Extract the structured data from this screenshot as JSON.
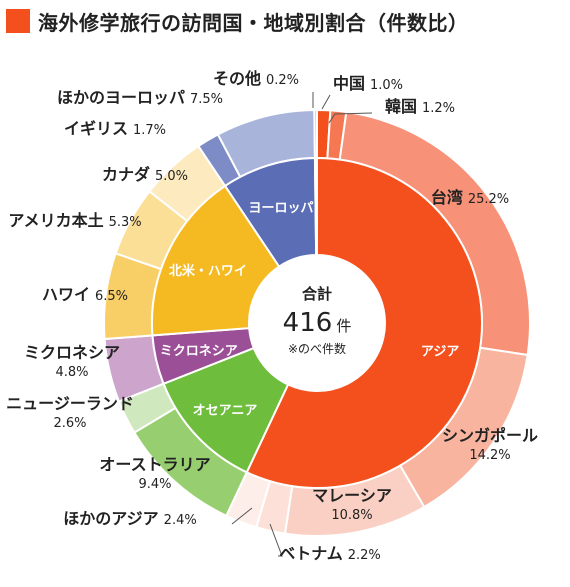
{
  "chart_data": {
    "type": "pie",
    "title": "海外修学旅行の訪問国・地域別割合（件数比）",
    "center": {
      "label": "合計",
      "total": "416",
      "unit": "件",
      "note": "※のべ件数"
    },
    "regions": [
      {
        "name": "アジア",
        "color": "#f4501e",
        "countries": [
          {
            "name": "中国",
            "value": 1.0,
            "label": "1.0%",
            "color": "#f4501e"
          },
          {
            "name": "韓国",
            "value": 1.2,
            "label": "1.2%",
            "color": "#f67852"
          },
          {
            "name": "台湾",
            "value": 25.2,
            "label": "25.2%",
            "color": "#f79177"
          },
          {
            "name": "シンガポール",
            "value": 14.2,
            "label": "14.2%",
            "color": "#f9b4a0"
          },
          {
            "name": "マレーシア",
            "value": 10.8,
            "label": "10.8%",
            "color": "#fbd0c4"
          },
          {
            "name": "ベトナム",
            "value": 2.2,
            "label": "2.2%",
            "color": "#fde1d8"
          },
          {
            "name": "ほかのアジア",
            "value": 2.4,
            "label": "2.4%",
            "color": "#feeee9"
          }
        ]
      },
      {
        "name": "オセアニア",
        "color": "#6fbd3c",
        "countries": [
          {
            "name": "オーストラリア",
            "value": 9.4,
            "label": "9.4%",
            "color": "#97cf70"
          },
          {
            "name": "ニュージーランド",
            "value": 2.6,
            "label": "2.6%",
            "color": "#cfe8bd"
          }
        ]
      },
      {
        "name": "ミクロネシア",
        "color": "#9b4f96",
        "countries": [
          {
            "name": "ミクロネシア",
            "value": 4.8,
            "label": "4.8%",
            "color": "#cda4cb"
          }
        ]
      },
      {
        "name": "北米・ハワイ",
        "color": "#f5b921",
        "countries": [
          {
            "name": "ハワイ",
            "value": 6.5,
            "label": "6.5%",
            "color": "#f8cf67"
          },
          {
            "name": "アメリカ本土",
            "value": 5.3,
            "label": "5.3%",
            "color": "#fbdf97"
          },
          {
            "name": "カナダ",
            "value": 5.0,
            "label": "5.0%",
            "color": "#fdebbf"
          }
        ]
      },
      {
        "name": "ヨーロッパ",
        "color": "#5b6db5",
        "countries": [
          {
            "name": "イギリス",
            "value": 1.7,
            "label": "1.7%",
            "color": "#7d8cc7"
          },
          {
            "name": "ほかのヨーロッパ",
            "value": 7.5,
            "label": "7.5%",
            "color": "#a9b4da"
          }
        ]
      },
      {
        "name": "その他",
        "color": "#8f8f8f",
        "countries": [
          {
            "name": "その他",
            "value": 0.2,
            "label": "0.2%",
            "color": "#bdbdbd"
          }
        ]
      }
    ]
  }
}
